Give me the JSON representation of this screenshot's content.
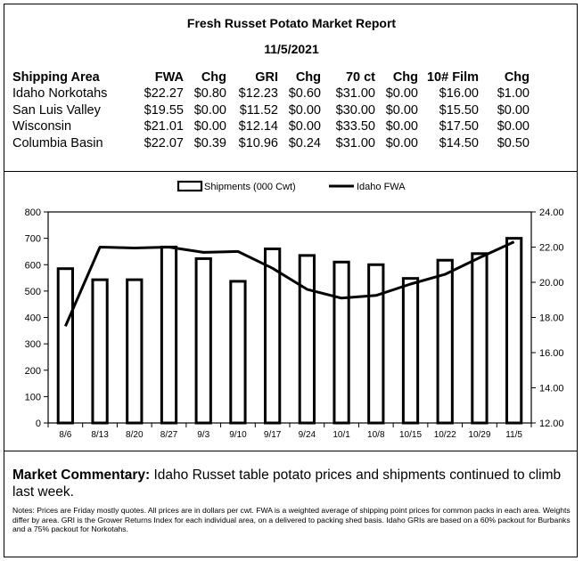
{
  "report": {
    "title": "Fresh Russet Potato Market Report",
    "date": "11/5/2021"
  },
  "price_table": {
    "headers": [
      "Shipping Area",
      "FWA",
      "Chg",
      "GRI",
      "Chg",
      "70 ct",
      "Chg",
      "10# Film",
      "Chg"
    ],
    "rows": [
      [
        "Idaho Norkotahs",
        "$22.27",
        "$0.80",
        "$12.23",
        "$0.60",
        "$31.00",
        "$0.00",
        "$16.00",
        "$1.00"
      ],
      [
        "San Luis Valley",
        "$19.55",
        "$0.00",
        "$11.52",
        "$0.00",
        "$30.00",
        "$0.00",
        "$15.50",
        "$0.00"
      ],
      [
        "Wisconsin",
        "$21.01",
        "$0.00",
        "$12.14",
        "$0.00",
        "$33.50",
        "$0.00",
        "$17.50",
        "$0.00"
      ],
      [
        "Columbia Basin",
        "$22.07",
        "$0.39",
        "$10.96",
        "$0.24",
        "$31.00",
        "$0.00",
        "$14.50",
        "$0.50"
      ]
    ]
  },
  "chart_data": {
    "type": "bar",
    "categories": [
      "8/6",
      "8/13",
      "8/20",
      "8/27",
      "9/3",
      "9/10",
      "9/17",
      "9/24",
      "10/1",
      "10/8",
      "10/15",
      "10/22",
      "10/29",
      "11/5"
    ],
    "series": [
      {
        "name": "Shipments (000 Cwt)",
        "type": "bar",
        "axis": "left",
        "values": [
          585,
          543,
          543,
          667,
          623,
          537,
          660,
          635,
          610,
          600,
          548,
          617,
          642,
          700
        ]
      },
      {
        "name": "Idaho FWA",
        "type": "line",
        "axis": "right",
        "values": [
          17.5,
          22.0,
          21.95,
          22.0,
          21.7,
          21.75,
          20.8,
          19.6,
          19.1,
          19.25,
          19.9,
          20.45,
          21.4,
          22.3
        ]
      }
    ],
    "ylim_left": [
      0,
      800
    ],
    "ylim_right": [
      12,
      24
    ],
    "left_ticks": [
      "0",
      "100",
      "200",
      "300",
      "400",
      "500",
      "600",
      "700",
      "800"
    ],
    "right_ticks": [
      "12.00",
      "14.00",
      "16.00",
      "18.00",
      "20.00",
      "22.00",
      "24.00"
    ],
    "grid": false,
    "legend": "top-center",
    "colors": {
      "bar_fill": "#ffffff",
      "bar_stroke": "#000000",
      "line": "#000000"
    }
  },
  "commentary": {
    "label": "Market Commentary:",
    "text": " Idaho Russet table potato prices and shipments continued to climb last week."
  },
  "notes": "Notes: Prices are Friday mostly quotes. All prices are in dollars per cwt. FWA is a weighted average of shipping point prices for  common packs in each area. Weights differ by area. GRI is the Grower Returns Index for each individual area, on a delivered to packing shed basis. Idaho GRIs are based on a 60% packout for Burbanks and a 75% packout for Norkotahs."
}
